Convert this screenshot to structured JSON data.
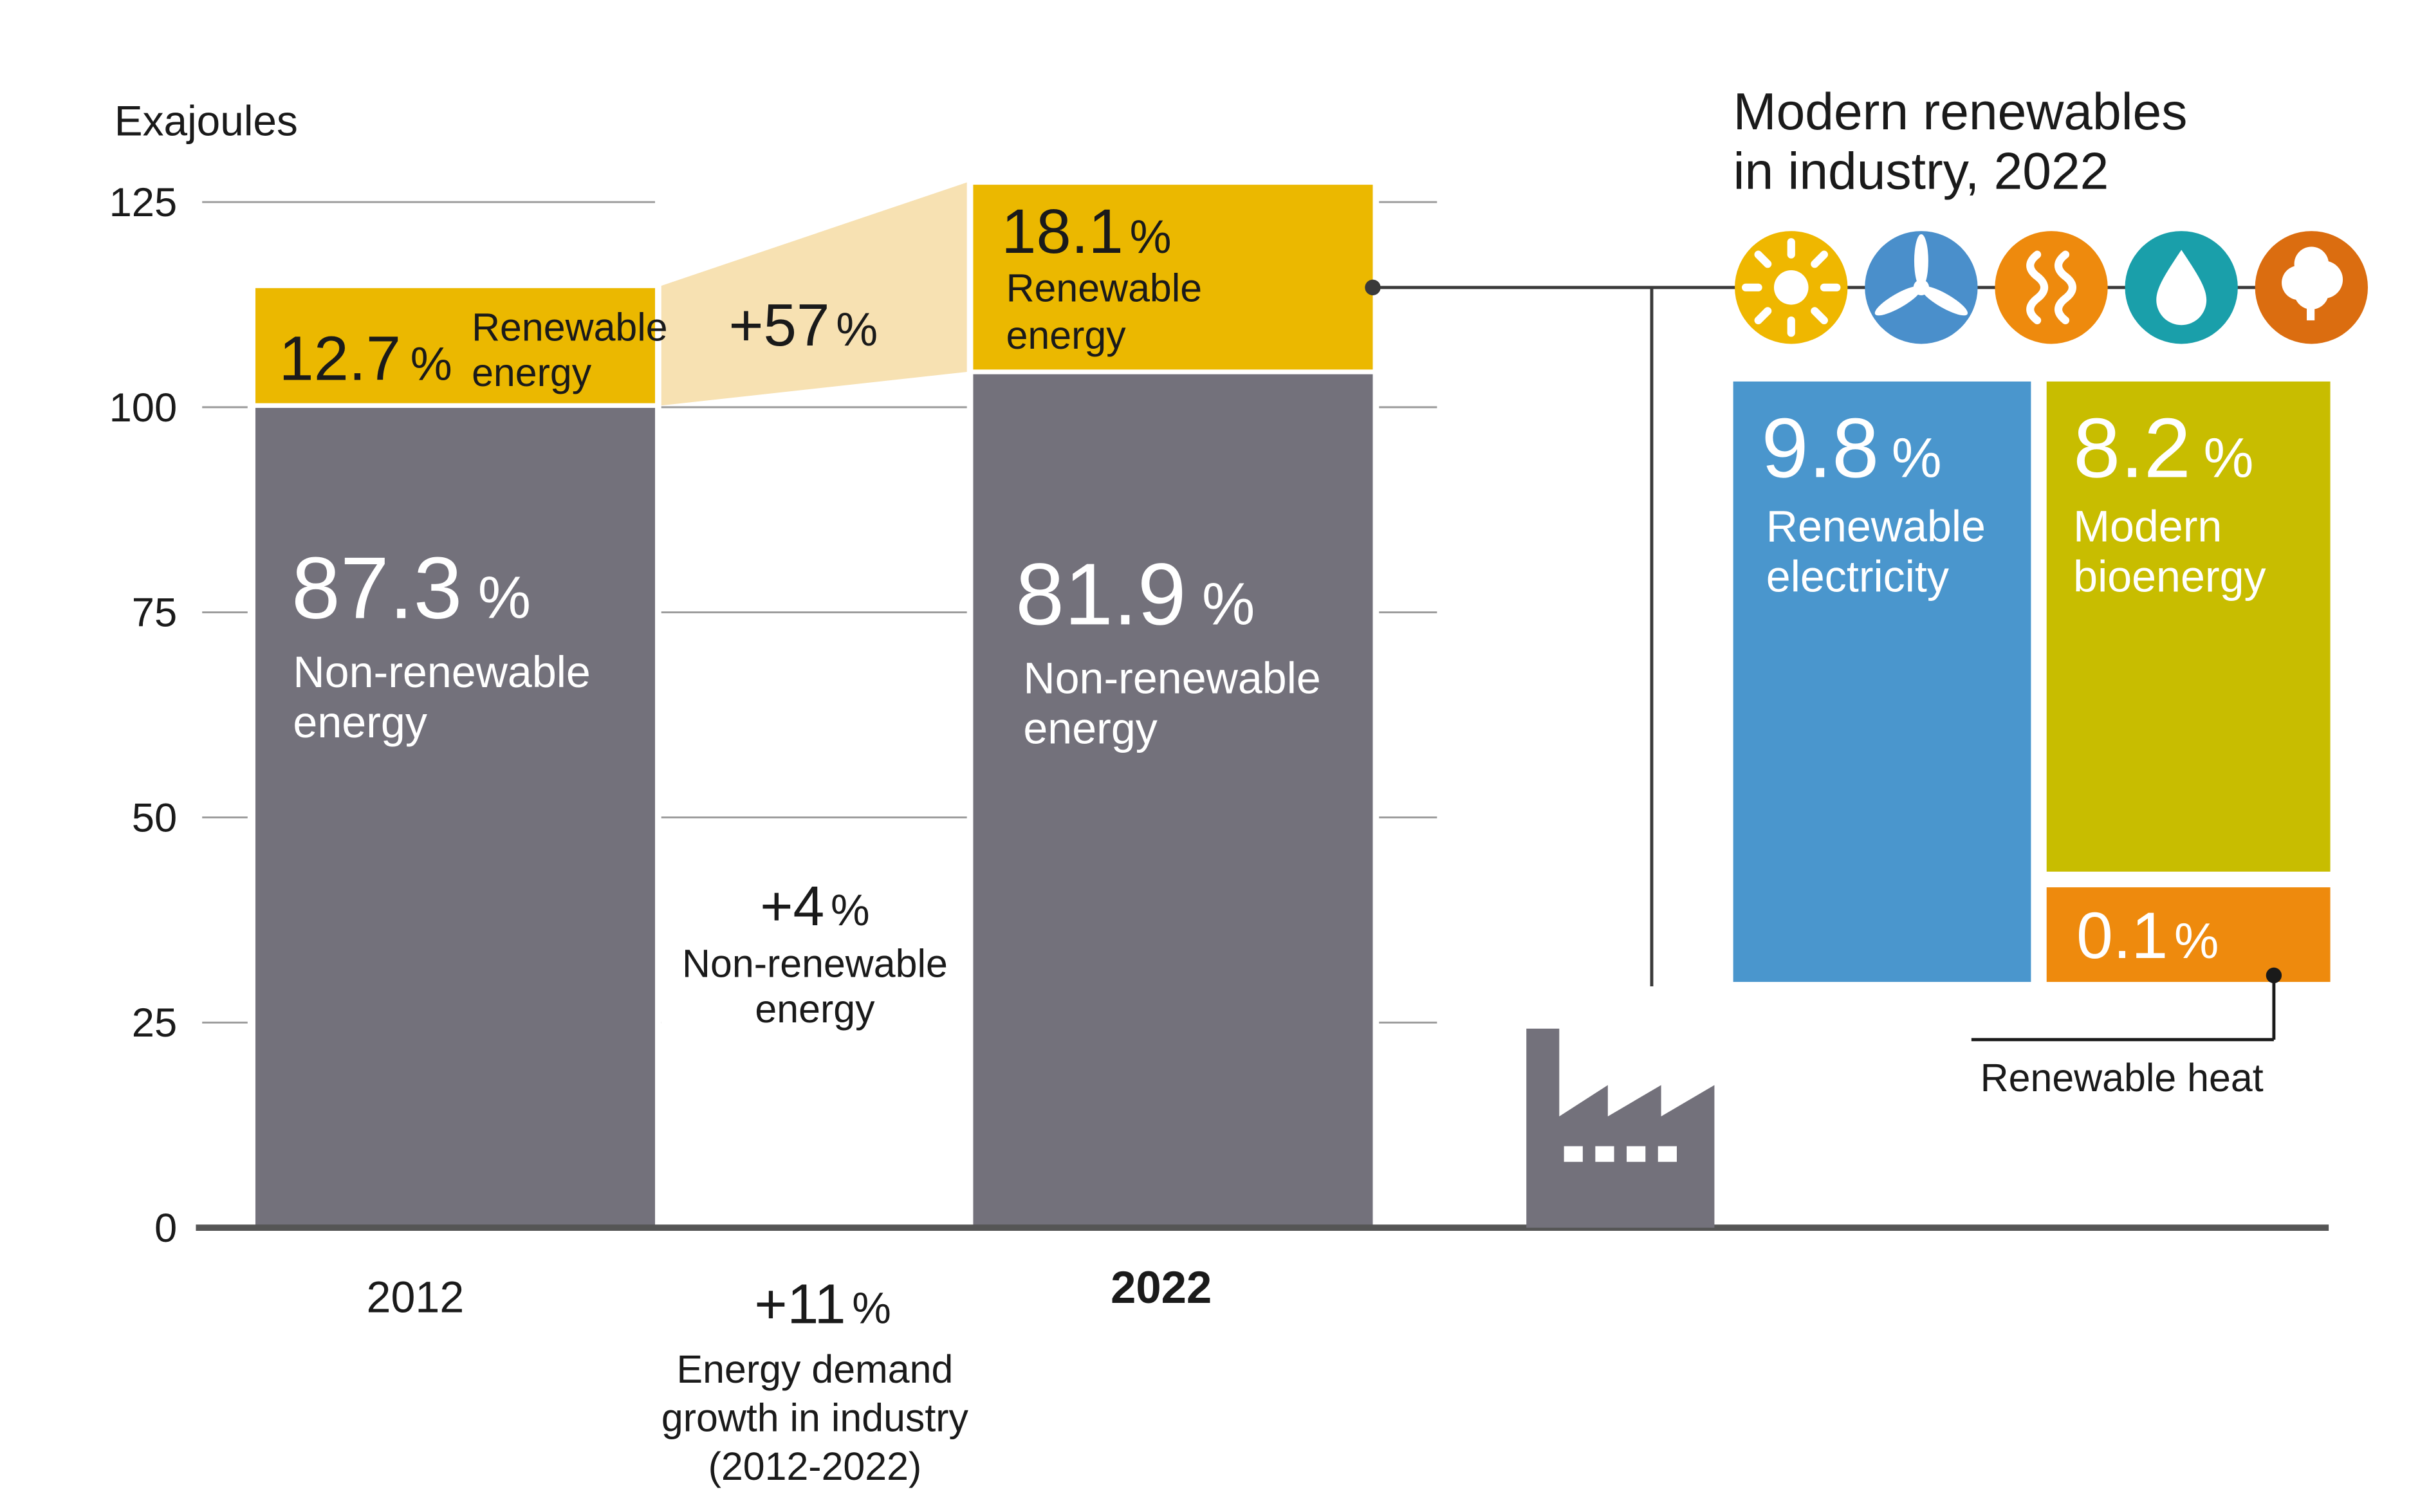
{
  "chart_data": {
    "type": "bar",
    "ylabel": "Exajoules",
    "ylim": [
      0,
      125
    ],
    "yticks": [
      0,
      25,
      50,
      75,
      100,
      125
    ],
    "grid": true,
    "categories": [
      "2012",
      "2022"
    ],
    "series": [
      {
        "name": "Non-renewable energy",
        "values": [
          100.2,
          104.3
        ]
      },
      {
        "name": "Renewable energy",
        "values": [
          14.6,
          23.1
        ]
      }
    ],
    "bars": [
      {
        "year": "2012",
        "non_renewable": {
          "value": "87.3",
          "pct": "%",
          "label1": "Non-renewable",
          "label2": "energy"
        },
        "renewable": {
          "value": "12.7",
          "pct": "%",
          "label1": "Renewable",
          "label2": "energy"
        }
      },
      {
        "year": "2022",
        "non_renewable": {
          "value": "81.9",
          "pct": "%",
          "label1": "Non-renewable",
          "label2": "energy"
        },
        "renewable": {
          "value": "18.1",
          "pct": "%",
          "label1": "Renewable",
          "label2": "energy"
        }
      }
    ],
    "growth": {
      "renewable": {
        "value": "+57",
        "pct": "%"
      },
      "non_renewable": {
        "value": "+4",
        "pct": "%",
        "label1": "Non-renewable",
        "label2": "energy"
      },
      "total": {
        "value": "+11",
        "pct": "%",
        "label1": "Energy demand",
        "label2": "growth in industry",
        "label3": "(2012-2022)"
      }
    },
    "breakdown": {
      "title1": "Modern renewables",
      "title2": "in industry, 2022",
      "items": [
        {
          "key": "electricity",
          "value": "9.8",
          "pct": "%",
          "label1": "Renewable",
          "label2": "electricity",
          "color": "#4a96cd"
        },
        {
          "key": "bioenergy",
          "value": "8.2",
          "pct": "%",
          "label1": "Modern",
          "label2": "bioenergy",
          "color": "#c8bd00"
        },
        {
          "key": "heat",
          "value": "0.1",
          "pct": "%",
          "label": "Renewable heat",
          "color": "#ee8a0d"
        }
      ],
      "icons": [
        {
          "name": "sun-icon",
          "color": "#efb700"
        },
        {
          "name": "wind-turbine-icon",
          "color": "#4a8fcb"
        },
        {
          "name": "heat-waves-icon",
          "color": "#ee8a0d"
        },
        {
          "name": "water-drop-icon",
          "color": "#1a9faa"
        },
        {
          "name": "tree-icon",
          "color": "#db6d10"
        }
      ]
    },
    "colors": {
      "non_renewable": "#73717b",
      "renewable": "#ebb800",
      "renewable_growth": "#f7e1b2",
      "text": "#1a1a1a",
      "axis": "#555555",
      "grid": "#9a9a9a"
    }
  }
}
